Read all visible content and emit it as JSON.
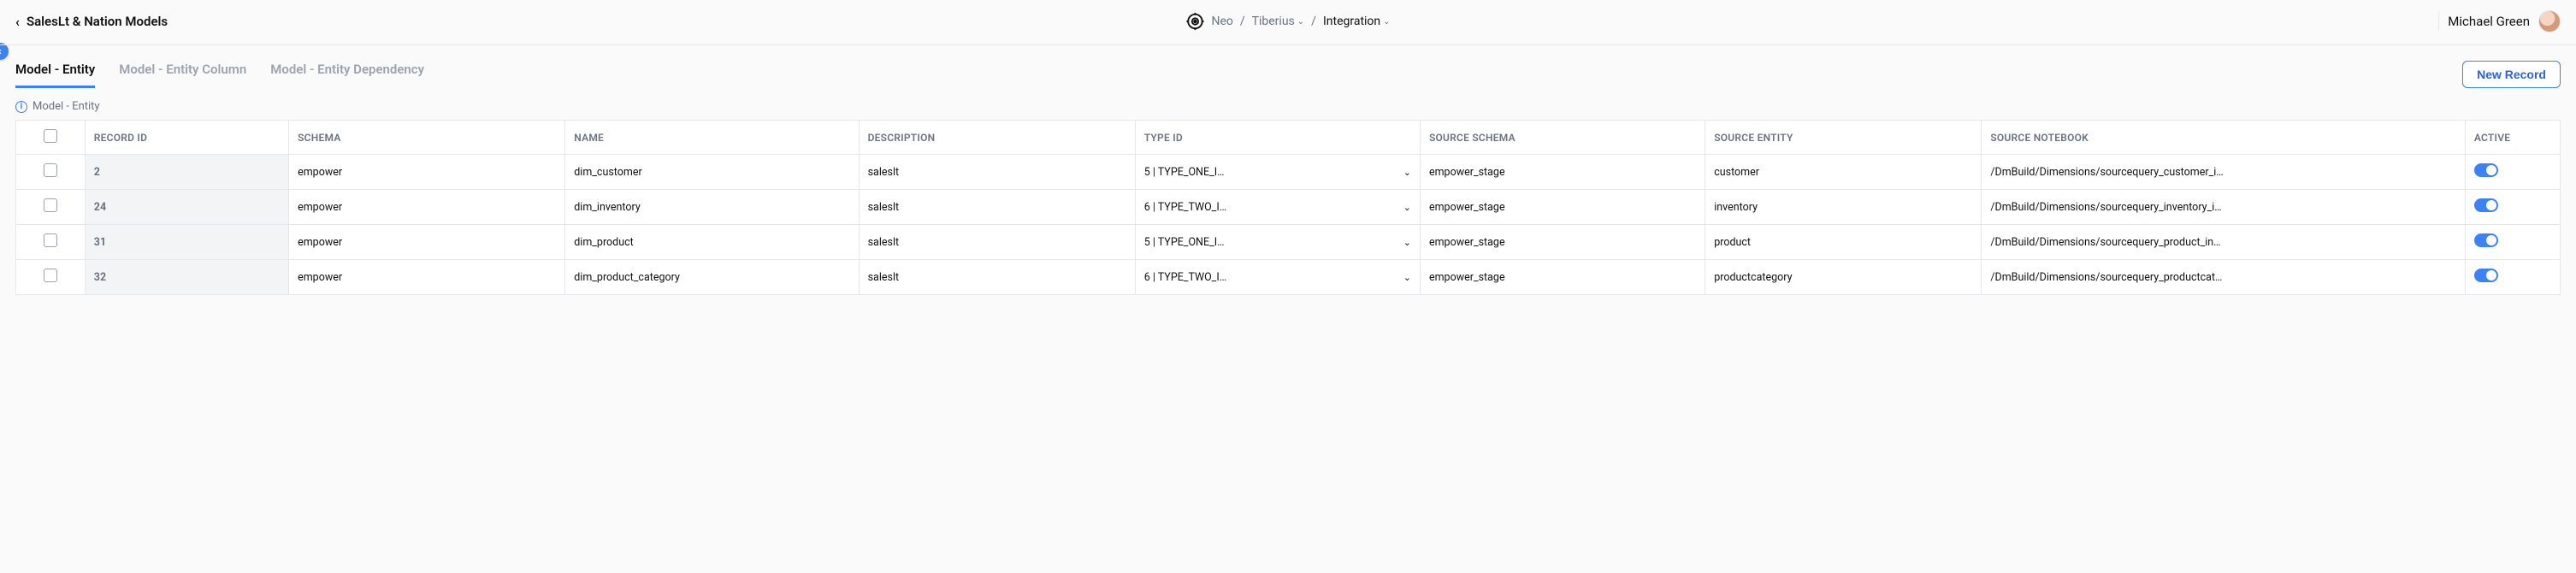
{
  "header": {
    "title": "SalesLt & Nation Models",
    "breadcrumb": {
      "org": "Neo",
      "workspace": "Tiberius",
      "section": "Integration"
    },
    "user_name": "Michael Green"
  },
  "tabs": {
    "items": [
      {
        "label": "Model - Entity",
        "active": true
      },
      {
        "label": "Model - Entity Column",
        "active": false
      },
      {
        "label": "Model - Entity Dependency",
        "active": false
      }
    ],
    "new_record_label": "New Record"
  },
  "info_line": "Model - Entity",
  "table": {
    "columns": [
      "RECORD ID",
      "SCHEMA",
      "NAME",
      "DESCRIPTION",
      "TYPE ID",
      "SOURCE SCHEMA",
      "SOURCE ENTITY",
      "SOURCE NOTEBOOK",
      "ACTIVE"
    ],
    "rows": [
      {
        "record_id": "2",
        "schema": "empower",
        "name": "dim_customer",
        "description": "saleslt",
        "type_id": "5 | TYPE_ONE_I…",
        "source_schema": "empower_stage",
        "source_entity": "customer",
        "source_notebook": "/DmBuild/Dimensions/sourcequery_customer_i…",
        "active": true
      },
      {
        "record_id": "24",
        "schema": "empower",
        "name": "dim_inventory",
        "description": "saleslt",
        "type_id": "6 | TYPE_TWO_I…",
        "source_schema": "empower_stage",
        "source_entity": "inventory",
        "source_notebook": "/DmBuild/Dimensions/sourcequery_inventory_i…",
        "active": true
      },
      {
        "record_id": "31",
        "schema": "empower",
        "name": "dim_product",
        "description": "saleslt",
        "type_id": "5 | TYPE_ONE_I…",
        "source_schema": "empower_stage",
        "source_entity": "product",
        "source_notebook": "/DmBuild/Dimensions/sourcequery_product_in…",
        "active": true
      },
      {
        "record_id": "32",
        "schema": "empower",
        "name": "dim_product_category",
        "description": "saleslt",
        "type_id": "6 | TYPE_TWO_I…",
        "source_schema": "empower_stage",
        "source_entity": "productcategory",
        "source_notebook": "/DmBuild/Dimensions/sourcequery_productcat…",
        "active": true
      }
    ]
  },
  "colors": {
    "accent": "#3b82f6",
    "border": "#e5e7eb",
    "muted_text": "#6b7280",
    "recid_bg": "#f3f4f6",
    "page_bg": "#fafafa"
  }
}
